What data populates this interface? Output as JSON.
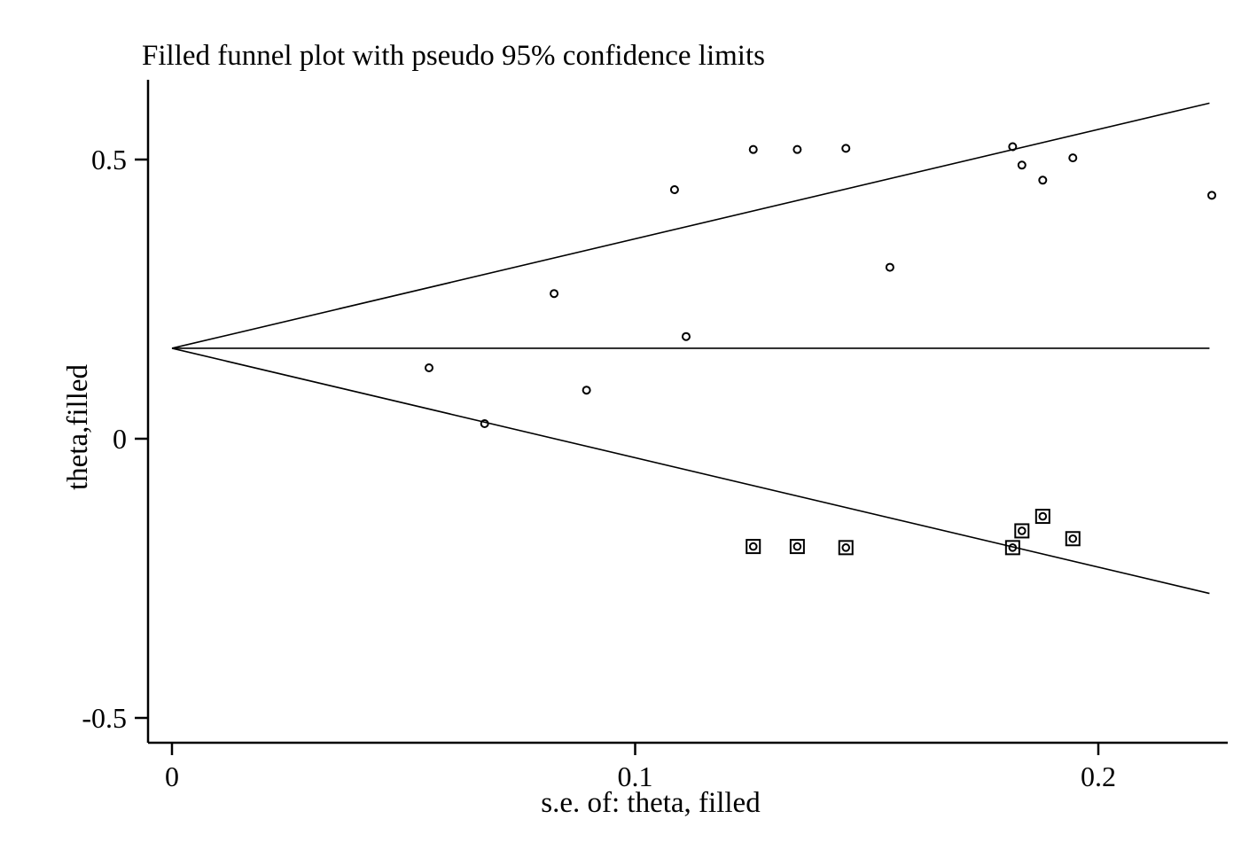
{
  "chart_data": {
    "type": "scatter",
    "title": "Filled funnel plot with pseudo 95% confidence limits",
    "xlabel": "s.e. of: theta, filled",
    "ylabel": "theta,filled",
    "xlim": [
      0,
      0.229
    ],
    "ylim": [
      -0.52,
      0.64
    ],
    "x_ticks": [
      {
        "value": 0,
        "label": "0"
      },
      {
        "value": 0.1,
        "label": "0.1"
      },
      {
        "value": 0.2,
        "label": "0.2"
      }
    ],
    "y_ticks": [
      {
        "value": 0.5,
        "label": "0.5"
      },
      {
        "value": 0,
        "label": "0"
      },
      {
        "value": -0.5,
        "label": "-0.5"
      }
    ],
    "pooled_estimate": 0.162,
    "z_value": 1.96,
    "funnel_max_se": 0.224,
    "grid": false,
    "legend": "none",
    "line_color": "#000000",
    "series": [
      {
        "marker": "circle",
        "points": [
          {
            "x": 0.0555,
            "y": 0.127
          },
          {
            "x": 0.0675,
            "y": 0.027
          },
          {
            "x": 0.0825,
            "y": 0.26
          },
          {
            "x": 0.0895,
            "y": 0.087
          },
          {
            "x": 0.1085,
            "y": 0.446
          },
          {
            "x": 0.111,
            "y": 0.183
          },
          {
            "x": 0.1255,
            "y": 0.518
          },
          {
            "x": 0.135,
            "y": 0.518
          },
          {
            "x": 0.1455,
            "y": 0.52
          },
          {
            "x": 0.155,
            "y": 0.307
          },
          {
            "x": 0.1815,
            "y": 0.523
          },
          {
            "x": 0.1835,
            "y": 0.49
          },
          {
            "x": 0.188,
            "y": 0.463
          },
          {
            "x": 0.1945,
            "y": 0.503
          },
          {
            "x": 0.2245,
            "y": 0.436
          }
        ]
      },
      {
        "marker": "circle-in-square",
        "points": [
          {
            "x": 0.1255,
            "y": -0.193
          },
          {
            "x": 0.135,
            "y": -0.193
          },
          {
            "x": 0.1455,
            "y": -0.195
          },
          {
            "x": 0.1815,
            "y": -0.195
          },
          {
            "x": 0.1835,
            "y": -0.165
          },
          {
            "x": 0.188,
            "y": -0.139
          },
          {
            "x": 0.1945,
            "y": -0.179
          }
        ]
      }
    ]
  }
}
